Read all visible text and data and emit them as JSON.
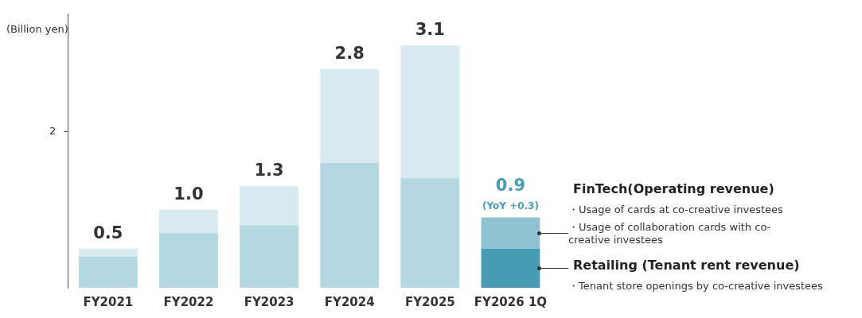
{
  "chart_data": {
    "type": "bar",
    "stacked": true,
    "ylabel": "(Billion yen)",
    "categories": [
      "FY2021",
      "FY2022",
      "FY2023",
      "FY2024",
      "FY2025",
      "FY2026 1Q"
    ],
    "series": [
      {
        "name": "Retailing (Tenant rent revenue)",
        "colors": [
          "#b3d8e1",
          "#b3d8e1",
          "#b3d8e1",
          "#b3d8e1",
          "#b3d8e1",
          "#459db3"
        ],
        "values": [
          0.4,
          0.7,
          0.8,
          1.6,
          1.4,
          0.5
        ]
      },
      {
        "name": "FinTech(Operating revenue)",
        "colors": [
          "#d8e9f0",
          "#d8e9f0",
          "#d8e9f0",
          "#d8e9f0",
          "#d8e9f0",
          "#8dc3d2"
        ],
        "values": [
          0.1,
          0.3,
          0.5,
          1.2,
          1.7,
          0.4
        ]
      }
    ],
    "totals": [
      "0.5",
      "1.0",
      "1.3",
      "2.8",
      "3.1",
      "0.9"
    ],
    "ylim": [
      0,
      3.5
    ],
    "yticks": [
      2
    ],
    "grid": false,
    "legend": "right",
    "annotations": [
      {
        "text": "(YoY +0.3)",
        "x": "FY2026 1Q",
        "y": 0.9
      },
      "・Usage of cards at co-creative investees",
      "・Usage of collaboration cards with co-creative investees",
      "・Tenant store openings by co-creative investees"
    ]
  }
}
